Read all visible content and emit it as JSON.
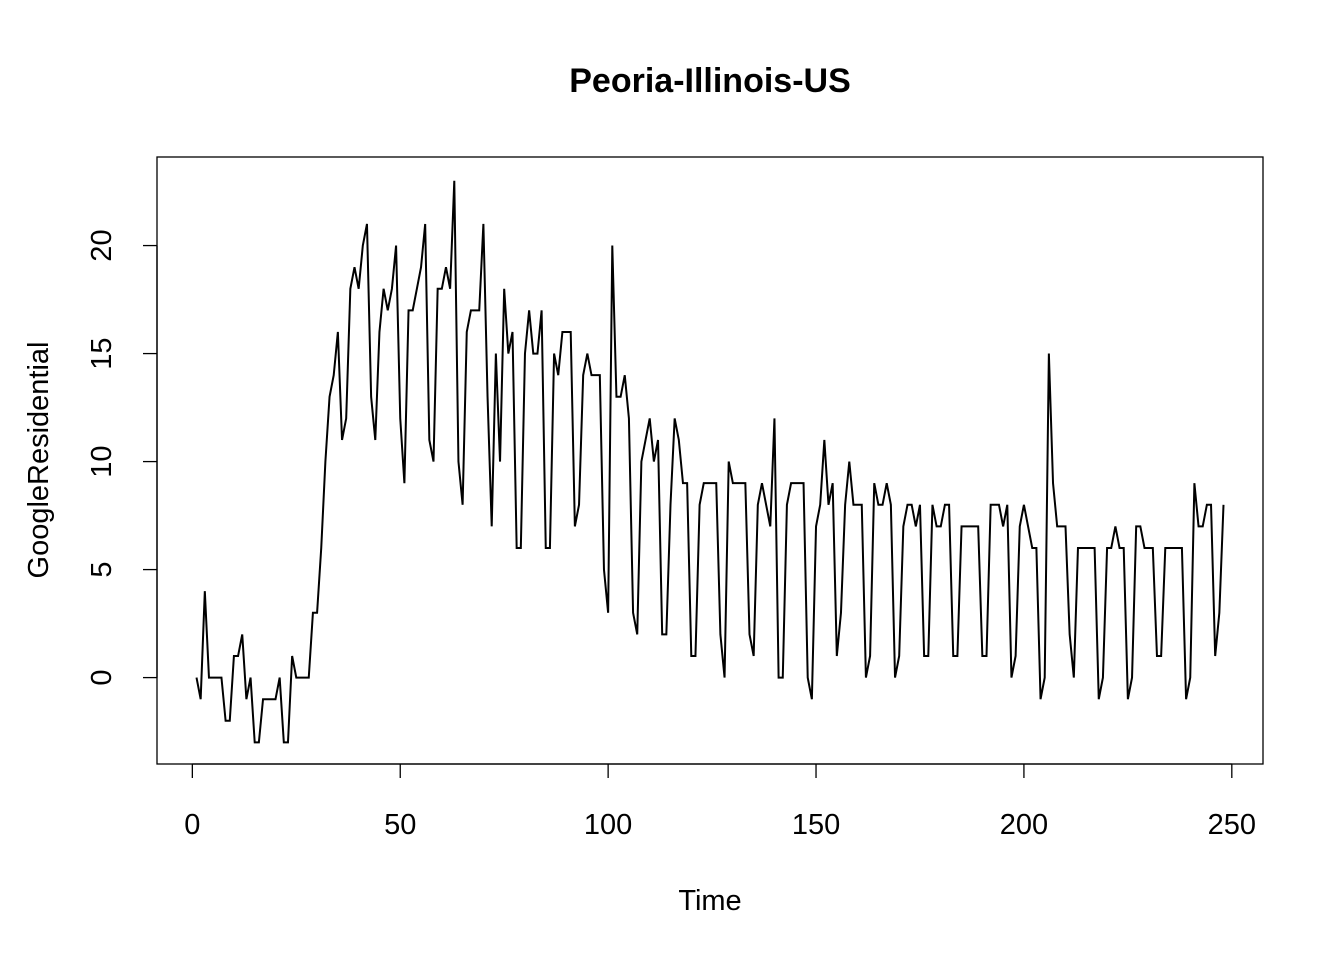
{
  "chart_data": {
    "type": "line",
    "title": "Peoria-Illinois-US",
    "xlabel": "Time",
    "ylabel": "GoogleResidential",
    "xlim": [
      -8.5,
      257.5
    ],
    "ylim": [
      -4,
      24.1
    ],
    "xticks": [
      0,
      50,
      100,
      150,
      200,
      250
    ],
    "yticks": [
      0,
      5,
      10,
      15,
      20
    ],
    "grid": false,
    "legend": "none",
    "line_color": "#000000",
    "series": [
      {
        "x": [
          1,
          2,
          3,
          4,
          5,
          6,
          7,
          8,
          9,
          10,
          11,
          12,
          13,
          14,
          15,
          16,
          17,
          18,
          19,
          20,
          21,
          22,
          23,
          24,
          25,
          26,
          27,
          28,
          29,
          30,
          31,
          32,
          33,
          34,
          35,
          36,
          37,
          38,
          39,
          40,
          41,
          42,
          43,
          44,
          45,
          46,
          47,
          48,
          49,
          50,
          51,
          52,
          53,
          54,
          55,
          56,
          57,
          58,
          59,
          60,
          61,
          62,
          63,
          64,
          65,
          66,
          67,
          68,
          69,
          70,
          71,
          72,
          73,
          74,
          75,
          76,
          77,
          78,
          79,
          80,
          81,
          82,
          83,
          84,
          85,
          86,
          87,
          88,
          89,
          90,
          91,
          92,
          93,
          94,
          95,
          96,
          97,
          98,
          99,
          100,
          101,
          102,
          103,
          104,
          105,
          106,
          107,
          108,
          109,
          110,
          111,
          112,
          113,
          114,
          115,
          116,
          117,
          118,
          119,
          120,
          121,
          122,
          123,
          124,
          125,
          126,
          127,
          128,
          129,
          130,
          131,
          132,
          133,
          134,
          135,
          136,
          137,
          138,
          139,
          140,
          141,
          142,
          143,
          144,
          145,
          146,
          147,
          148,
          149,
          150,
          151,
          152,
          153,
          154,
          155,
          156,
          157,
          158,
          159,
          160,
          161,
          162,
          163,
          164,
          165,
          166,
          167,
          168,
          169,
          170,
          171,
          172,
          173,
          174,
          175,
          176,
          177,
          178,
          179,
          180,
          181,
          182,
          183,
          184,
          185,
          186,
          187,
          188,
          189,
          190,
          191,
          192,
          193,
          194,
          195,
          196,
          197,
          198,
          199,
          200,
          201,
          202,
          203,
          204,
          205,
          206,
          207,
          208,
          209,
          210,
          211,
          212,
          213,
          214,
          215,
          216,
          217,
          218,
          219,
          220,
          221,
          222,
          223,
          224,
          225,
          226,
          227,
          228,
          229,
          230,
          231,
          232,
          233,
          234,
          235,
          236,
          237,
          238,
          239,
          240,
          241,
          242,
          243,
          244,
          245,
          246,
          247,
          248
        ],
        "values": [
          0,
          -1,
          4,
          0,
          0,
          0,
          0,
          -2,
          -2,
          1,
          1,
          2,
          -1,
          0,
          -3,
          -3,
          -1,
          -1,
          -1,
          -1,
          0,
          -3,
          -3,
          1,
          0,
          0,
          0,
          0,
          3,
          3,
          6,
          10,
          13,
          14,
          16,
          11,
          12,
          18,
          19,
          18,
          20,
          21,
          13,
          11,
          16,
          18,
          17,
          18,
          20,
          12,
          9,
          17,
          17,
          18,
          19,
          21,
          11,
          10,
          18,
          18,
          19,
          18,
          23,
          10,
          8,
          16,
          17,
          17,
          17,
          21,
          13,
          7,
          15,
          10,
          18,
          15,
          16,
          6,
          6,
          15,
          17,
          15,
          15,
          17,
          6,
          6,
          15,
          14,
          16,
          16,
          16,
          7,
          8,
          14,
          15,
          14,
          14,
          14,
          5,
          3,
          20,
          13,
          13,
          14,
          12,
          3,
          2,
          10,
          11,
          12,
          10,
          11,
          2,
          2,
          8,
          12,
          11,
          9,
          9,
          1,
          1,
          8,
          9,
          9,
          9,
          9,
          2,
          0,
          10,
          9,
          9,
          9,
          9,
          2,
          1,
          8,
          9,
          8,
          7,
          12,
          0,
          0,
          8,
          9,
          9,
          9,
          9,
          0,
          -1,
          7,
          8,
          11,
          8,
          9,
          1,
          3,
          8,
          10,
          8,
          8,
          8,
          0,
          1,
          9,
          8,
          8,
          9,
          8,
          0,
          1,
          7,
          8,
          8,
          7,
          8,
          1,
          1,
          8,
          7,
          7,
          8,
          8,
          1,
          1,
          7,
          7,
          7,
          7,
          7,
          1,
          1,
          8,
          8,
          8,
          7,
          8,
          0,
          1,
          7,
          8,
          7,
          6,
          6,
          -1,
          0,
          15,
          9,
          7,
          7,
          7,
          2,
          0,
          6,
          6,
          6,
          6,
          6,
          -1,
          0,
          6,
          6,
          7,
          6,
          6,
          -1,
          0,
          7,
          7,
          6,
          6,
          6,
          1,
          1,
          6,
          6,
          6,
          6,
          6,
          -1,
          0,
          9,
          7,
          7,
          8,
          8,
          1,
          3,
          8
        ]
      }
    ]
  }
}
